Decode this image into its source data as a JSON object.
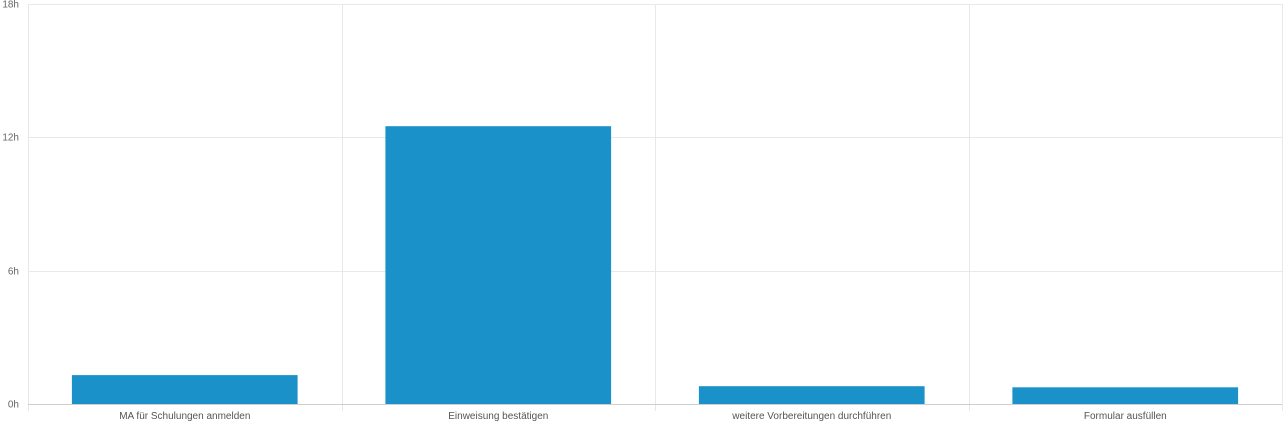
{
  "chart_data": {
    "type": "bar",
    "categories": [
      "MA für Schulungen anmelden",
      "Einweisung bestätigen",
      "weitere Vorbereitungen durchführen",
      "Formular ausfüllen"
    ],
    "values": [
      1.3,
      12.5,
      0.8,
      0.75
    ],
    "y_unit": "h",
    "ylim": [
      0,
      18
    ],
    "yticks": [
      0,
      6,
      12,
      18
    ],
    "ytick_labels": [
      "0h",
      "6h",
      "12h",
      "18h"
    ],
    "title": "",
    "xlabel": "",
    "ylabel": "",
    "grid": true,
    "bar_color": "#1b91c9",
    "grid_color": "#e8e8e8"
  }
}
